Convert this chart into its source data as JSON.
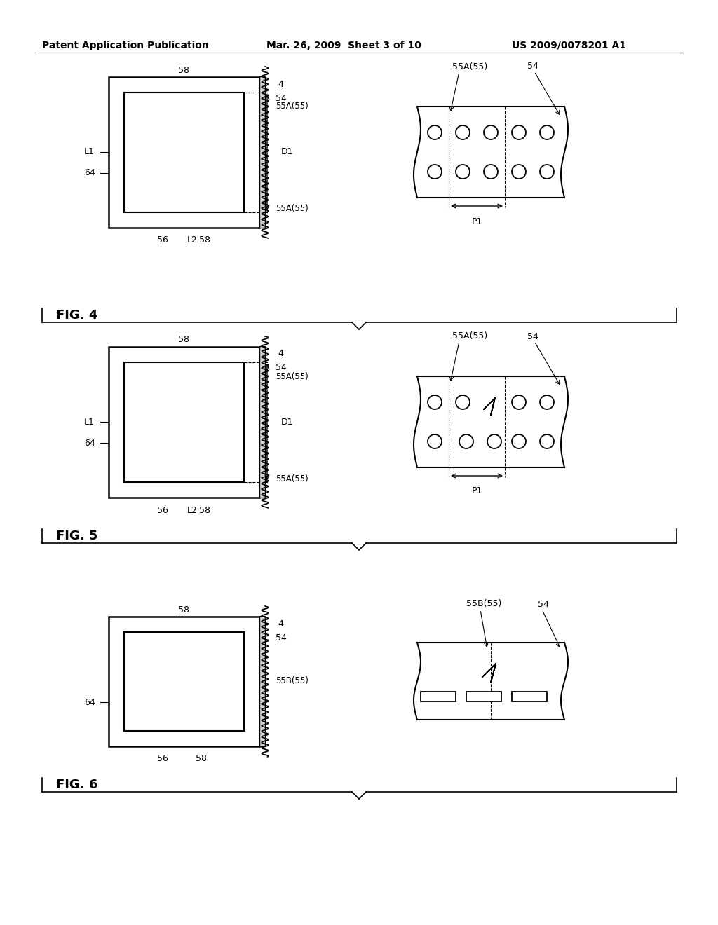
{
  "header_left": "Patent Application Publication",
  "header_mid": "Mar. 26, 2009  Sheet 3 of 10",
  "header_right": "US 2009/0078201 A1",
  "fig4_label": "FIG. 4",
  "fig5_label": "FIG. 5",
  "fig6_label": "FIG. 6",
  "background": "#ffffff",
  "line_color": "#000000",
  "hatch_color": "#000000"
}
